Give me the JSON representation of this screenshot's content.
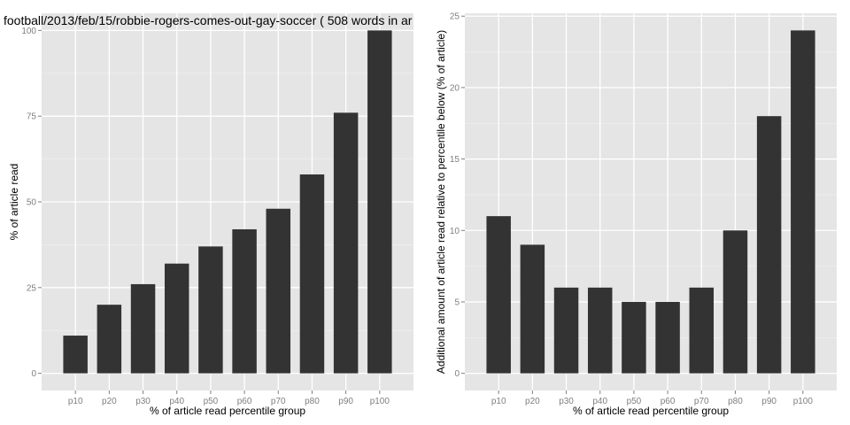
{
  "chart_data": [
    {
      "type": "bar",
      "title": "football/2013/feb/15/robbie-rogers-comes-out-gay-soccer ( 508 words in ar",
      "xlabel": "% of article read percentile group",
      "ylabel": "% of article read",
      "categories": [
        "p10",
        "p20",
        "p30",
        "p40",
        "p50",
        "p60",
        "p70",
        "p80",
        "p90",
        "p100"
      ],
      "values": [
        11,
        20,
        26,
        32,
        37,
        42,
        48,
        58,
        76,
        100
      ],
      "ylim": [
        -5,
        105
      ],
      "yticks": [
        0,
        25,
        50,
        75,
        100
      ],
      "ytick_labels": [
        "0",
        "25",
        "50",
        "75",
        "100"
      ],
      "grid": true,
      "bar_color": "#333333",
      "panel_color": "#e5e5e5"
    },
    {
      "type": "bar",
      "title": "",
      "xlabel": "% of article read percentile group",
      "ylabel": "Additional amount of article read relative to percentile below (% of article)",
      "categories": [
        "p10",
        "p20",
        "p30",
        "p40",
        "p50",
        "p60",
        "p70",
        "p80",
        "p90",
        "p100"
      ],
      "values": [
        11,
        9,
        6,
        6,
        5,
        5,
        6,
        10,
        18,
        24
      ],
      "ylim": [
        -1.2,
        25.2
      ],
      "yticks": [
        0,
        5,
        10,
        15,
        20,
        25
      ],
      "ytick_labels": [
        "0",
        "5",
        "10",
        "15",
        "20",
        "25"
      ],
      "grid": true,
      "bar_color": "#333333",
      "panel_color": "#e5e5e5"
    }
  ]
}
